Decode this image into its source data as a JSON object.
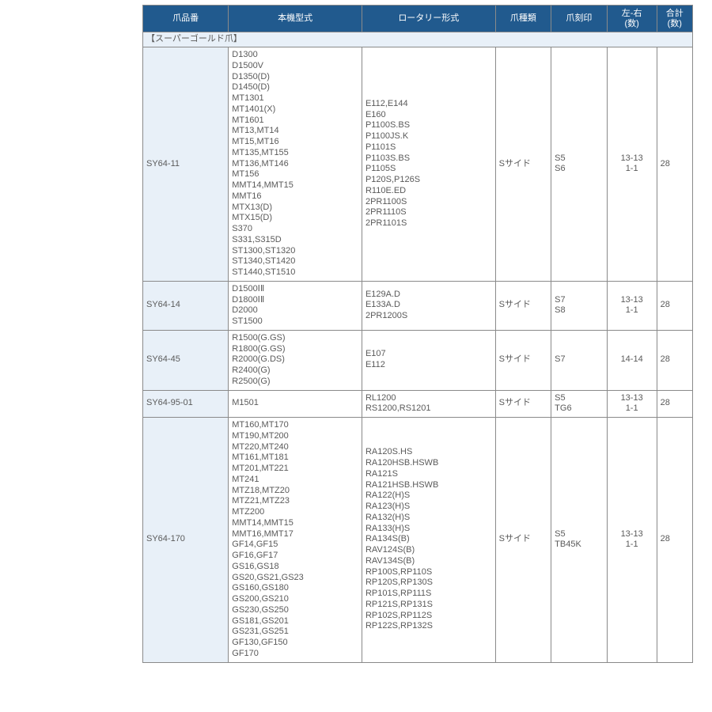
{
  "headers": {
    "c1": "爪品番",
    "c2": "本機型式",
    "c3": "ロータリー形式",
    "c4": "爪種類",
    "c5": "爪刻印",
    "c6": "左-右\n(数)",
    "c7": "合計\n(数)"
  },
  "section_label": "【スーパーゴールド爪】",
  "rows": [
    {
      "pn": "SY64-11",
      "machine": "D1300\nD1500V\nD1350(D)\nD1450(D)\nMT1301\nMT1401(X)\nMT1601\nMT13,MT14\nMT15,MT16\nMT135,MT155\nMT136,MT146\nMT156\nMMT14,MMT15\nMMT16\nMTX13(D)\nMTX15(D)\nS370\nS331,S315D\nST1300,ST1320\nST1340,ST1420\nST1440,ST1510",
      "rotary": "E112,E144\nE160\nP1100S.BS\nP1100JS.K\nP1101S\nP1103S.BS\nP1105S\nP120S,P126S\nR110E.ED\n2PR1100S\n2PR1110S\n2PR1101S",
      "type": "Sサイド",
      "stamp": "S5\nS6",
      "lr": "13-13\n1-1",
      "total": "28"
    },
    {
      "pn": "SY64-14",
      "machine": "D1500ⅠⅡ\nD1800ⅠⅡ\nD2000\nST1500",
      "rotary": "E129A.D\nE133A.D\n2PR1200S",
      "type": "Sサイド",
      "stamp": "S7\nS8",
      "lr": "13-13\n1-1",
      "total": "28"
    },
    {
      "pn": "SY64-45",
      "machine": "R1500(G.GS)\nR1800(G.GS)\nR2000(G.DS)\nR2400(G)\nR2500(G)",
      "rotary": "E107\nE112",
      "type": "Sサイド",
      "stamp": "S7",
      "lr": "14-14",
      "total": "28"
    },
    {
      "pn": "SY64-95-01",
      "machine": "M1501",
      "rotary": "RL1200\nRS1200,RS1201",
      "type": "Sサイド",
      "stamp": "S5\nTG6",
      "lr": "13-13\n1-1",
      "total": "28"
    },
    {
      "pn": "SY64-170",
      "machine": "MT160,MT170\nMT190,MT200\nMT220,MT240\nMT161,MT181\nMT201,MT221\nMT241\nMTZ18,MTZ20\nMTZ21,MTZ23\nMTZ200\nMMT14,MMT15\nMMT16,MMT17\nGF14,GF15\nGF16,GF17\nGS16,GS18\nGS20,GS21,GS23\nGS160,GS180\nGS200,GS210\nGS230,GS250\nGS181,GS201\nGS231,GS251\nGF130,GF150\nGF170",
      "rotary": "RA120S.HS\nRA120HSB.HSWB\nRA121S\nRA121HSB.HSWB\nRA122(H)S\nRA123(H)S\nRA132(H)S\nRA133(H)S\nRA134S(B)\nRAV124S(B)\nRAV134S(B)\nRP100S,RP110S\nRP120S,RP130S\nRP101S,RP111S\nRP121S,RP131S\nRP102S,RP112S\nRP122S,RP132S",
      "type": "Sサイド",
      "stamp": "S5\nTB45K",
      "lr": "13-13\n1-1",
      "total": "28"
    }
  ]
}
